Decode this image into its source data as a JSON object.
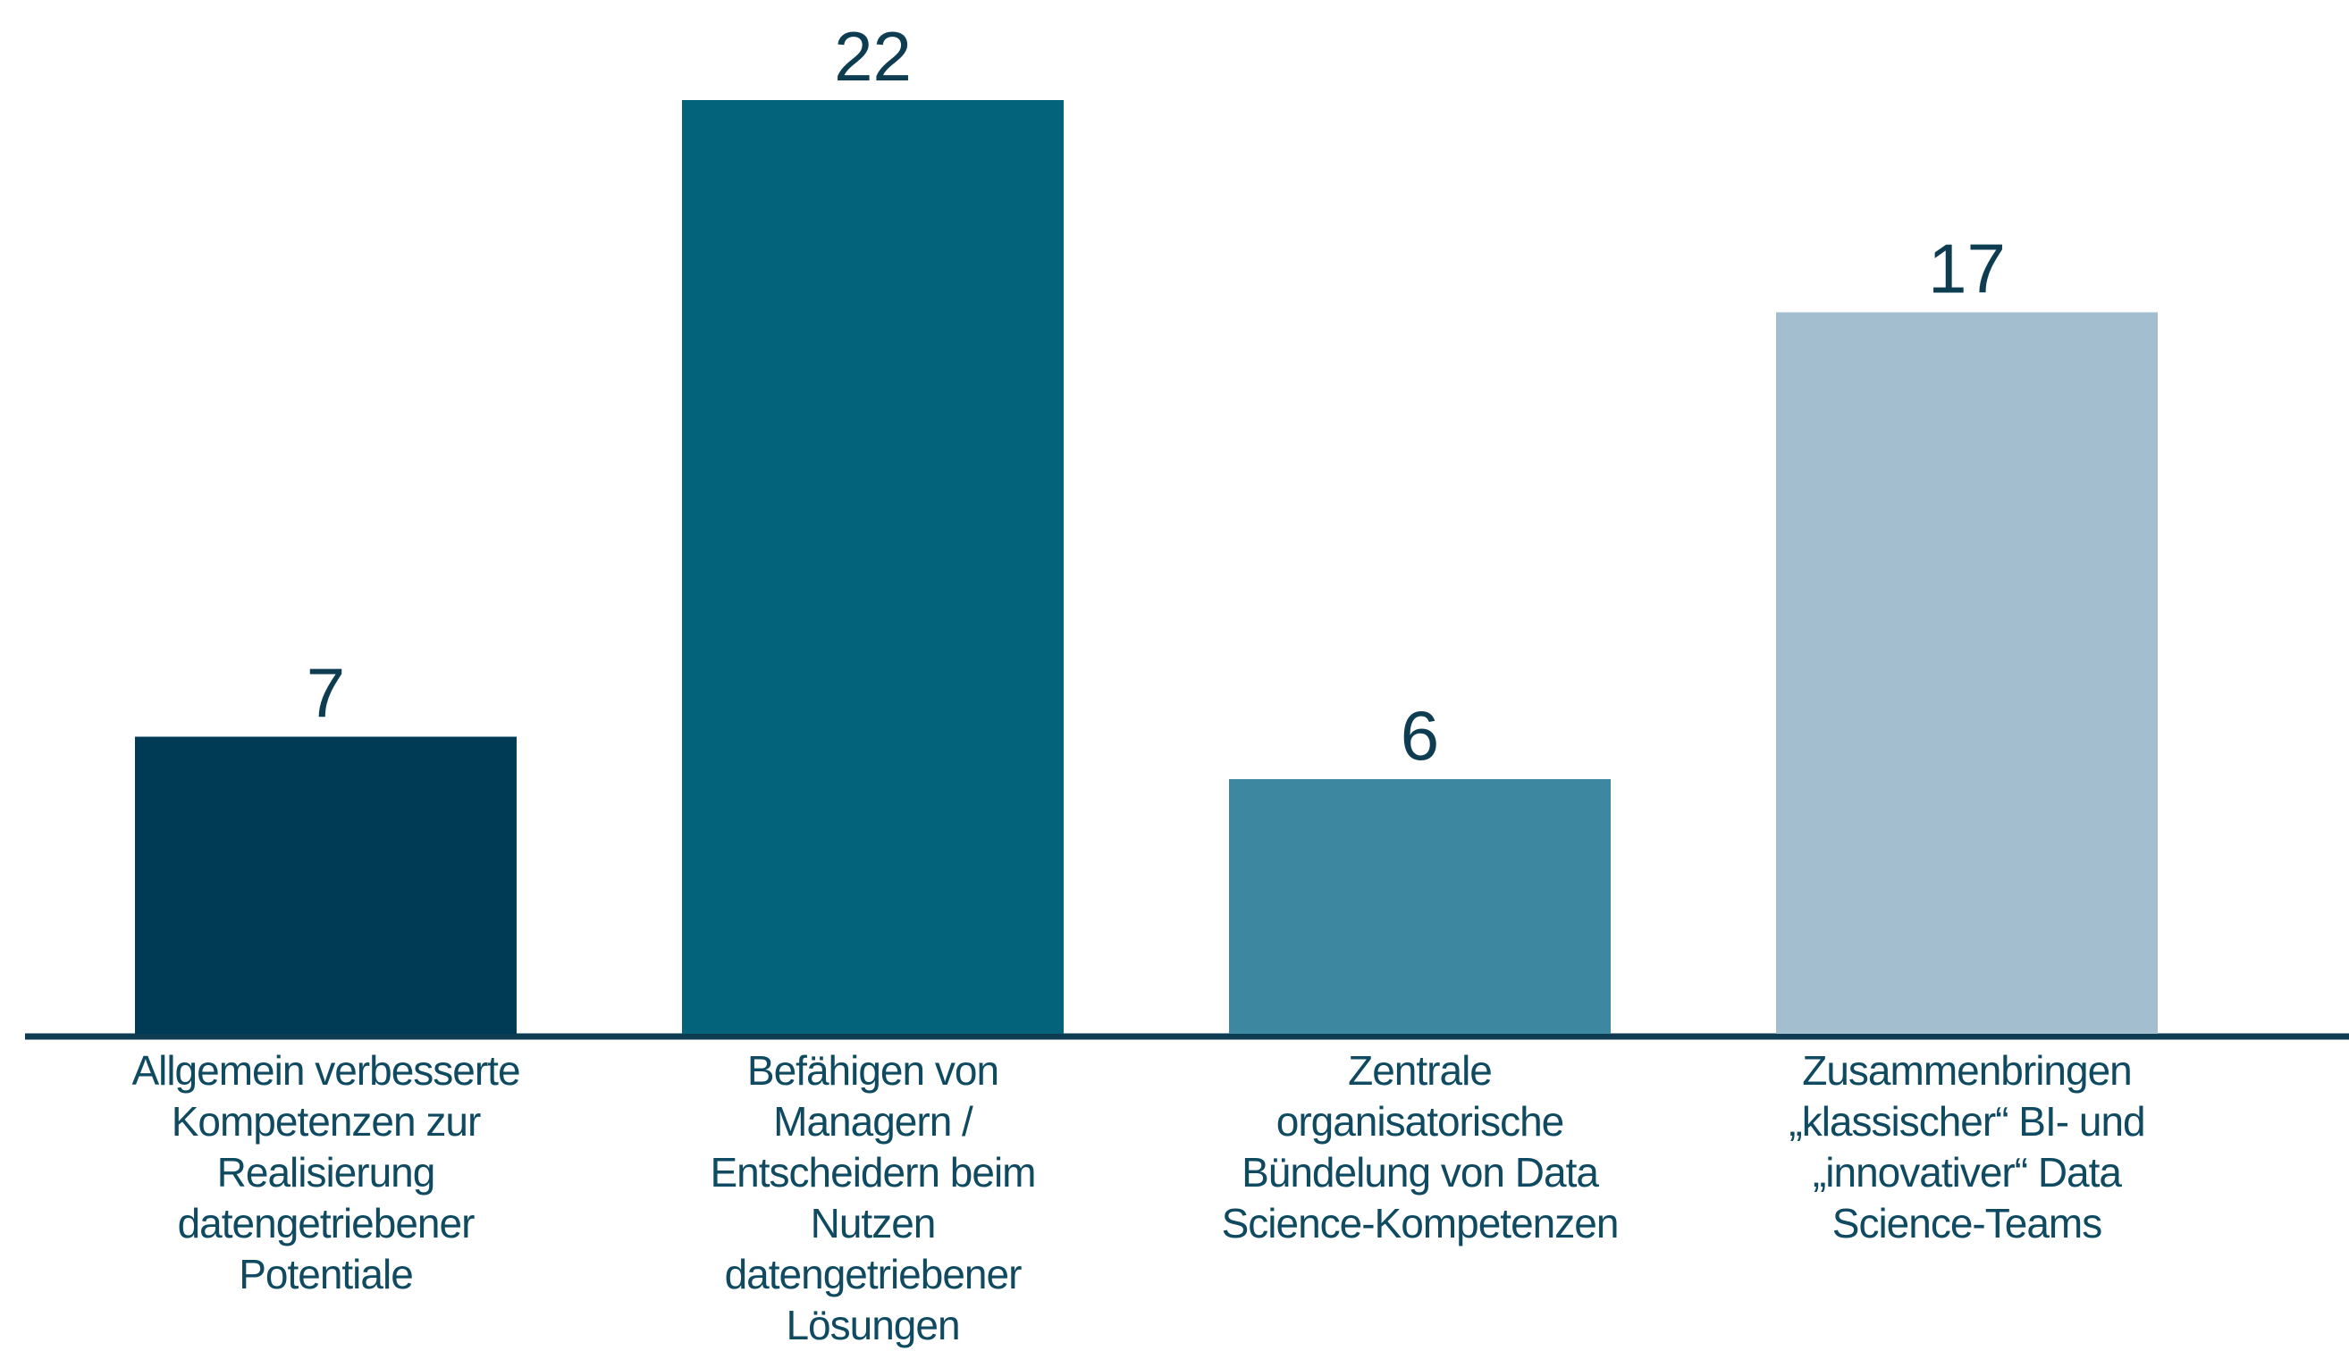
{
  "chart_data": {
    "type": "bar",
    "categories": [
      "Allgemein verbesserte Kompetenzen zur Realisierung datengetriebener Potentiale",
      "Befähigen von Managern / Entscheidern beim Nutzen datengetriebener Lösungen",
      "Zentrale organisatorische Bündelung von Data Science-Kompetenzen",
      "Zusammenbringen „klassischer“ BI- und „innovativer“ Data Science-Teams"
    ],
    "values": [
      7,
      22,
      6,
      17
    ],
    "colors": [
      "#003b55",
      "#03637a",
      "#3e87a0",
      "#a3bfcf"
    ]
  }
}
